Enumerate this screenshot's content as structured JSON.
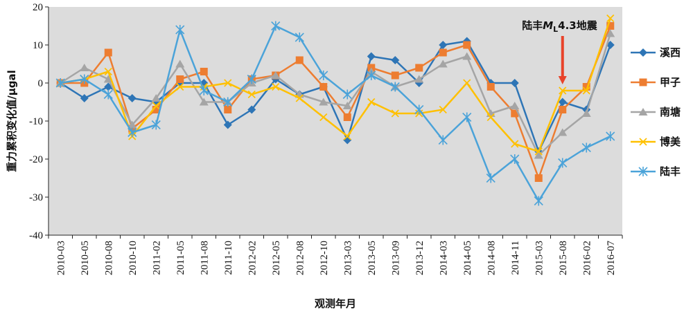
{
  "chart_data": {
    "type": "line",
    "xlabel": "观测年月",
    "ylabel": "重力累积变化值/μgal",
    "ylim": [
      -40,
      20
    ],
    "yticks": [
      -40,
      -30,
      -20,
      -10,
      0,
      10,
      20
    ],
    "grid": false,
    "legend_position": "right",
    "background_color": "#dcdcdc",
    "categories": [
      "2010-03",
      "2010-05",
      "2010-08",
      "2010-10",
      "2011-02",
      "2011-05",
      "2011-08",
      "2011-10",
      "2012-02",
      "2012-05",
      "2012-08",
      "2012-10",
      "2013-03",
      "2013-05",
      "2013-09",
      "2013-12",
      "2014-03",
      "2014-05",
      "2014-08",
      "2014-11",
      "2015-03",
      "2015-08",
      "2016-02",
      "2016-07"
    ],
    "series": [
      {
        "name": "溪西",
        "color": "#2e75b6",
        "marker": "diamond",
        "values": [
          0,
          -4,
          -1,
          -4,
          -5,
          0,
          0,
          -11,
          -7,
          1,
          -3,
          -1,
          -15,
          7,
          6,
          0,
          10,
          11,
          0,
          0,
          -18,
          -5,
          -7,
          10
        ]
      },
      {
        "name": "甲子",
        "color": "#ed7d31",
        "marker": "square",
        "values": [
          0,
          0,
          8,
          -12,
          -7,
          1,
          3,
          -7,
          1,
          2,
          6,
          -1,
          -9,
          4,
          2,
          4,
          8,
          10,
          -1,
          -8,
          -25,
          -7,
          -1,
          15
        ]
      },
      {
        "name": "南塘",
        "color": "#a5a5a5",
        "marker": "triangle",
        "values": [
          0,
          4,
          1,
          -11,
          -4,
          5,
          -5,
          -5,
          0,
          2,
          -3,
          -5,
          -6,
          3,
          -1,
          1,
          5,
          7,
          -8,
          -6,
          -19,
          -13,
          -8,
          13
        ]
      },
      {
        "name": "博美",
        "color": "#ffc000",
        "marker": "x",
        "values": [
          0,
          1,
          3,
          -14,
          -6,
          -1,
          -1,
          0,
          -3,
          -1,
          -4,
          -9,
          -14,
          -5,
          -8,
          -8,
          -7,
          0,
          -9,
          -16,
          -18,
          -2,
          -2,
          17
        ]
      },
      {
        "name": "陆丰",
        "color": "#4ba3d9",
        "marker": "star",
        "values": [
          0,
          1,
          -3,
          -13,
          -11,
          14,
          -2,
          -5,
          1,
          15,
          12,
          2,
          -3,
          2,
          -1,
          -7,
          -15,
          -9,
          -25,
          -20,
          -31,
          -21,
          -17,
          -14
        ]
      }
    ],
    "annotation": {
      "prefix": "陆丰",
      "magnitude_symbol": "M",
      "magnitude_subscript": "L",
      "suffix": "4.3地震",
      "category": "2015-08",
      "arrow_color": "#e8432a"
    }
  }
}
